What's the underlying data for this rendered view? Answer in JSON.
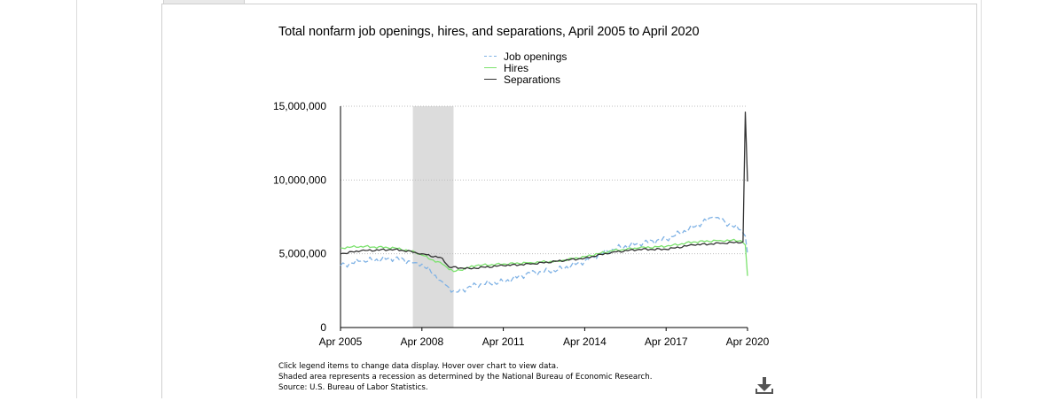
{
  "title": "Total nonfarm job openings, hires, and separations, April 2005 to April 2020",
  "legend": [
    {
      "label": "Job openings",
      "color": "#7fb2e5",
      "style": "dashed"
    },
    {
      "label": "Hires",
      "color": "#7be26d",
      "style": "solid"
    },
    {
      "label": "Separations",
      "color": "#333333",
      "style": "solid"
    }
  ],
  "notes": {
    "line1": "Click legend items to change data display. Hover over chart to view data.",
    "line2": "Shaded area represents a recession as determined by the National Bureau of Economic Research.",
    "line3": "Source: U.S. Bureau of Labor Statistics."
  },
  "icons": {
    "download": "download-icon"
  },
  "chart_data": {
    "type": "line",
    "title": "Total nonfarm job openings, hires, and separations, April 2005 to April 2020",
    "xlabel": "",
    "ylabel": "",
    "x_ticks": [
      "Apr 2005",
      "Apr 2008",
      "Apr 2011",
      "Apr 2014",
      "Apr 2017",
      "Apr 2020"
    ],
    "y_ticks": [
      0,
      5000000,
      10000000,
      15000000
    ],
    "y_tick_labels": [
      "0",
      "5,000,000",
      "10,000,000",
      "15,000,000"
    ],
    "ylim": [
      0,
      15000000
    ],
    "x_start": "Apr 2005",
    "x_end": "Apr 2020",
    "grid": true,
    "legend_position": "top-center",
    "recession": {
      "start": "Dec 2007",
      "end": "Jun 2009"
    },
    "series": [
      {
        "name": "Job openings",
        "color": "#7fb2e5",
        "style": "dashed",
        "keypoints": [
          [
            "Apr 2005",
            4200000
          ],
          [
            "Jan 2006",
            4500000
          ],
          [
            "Apr 2007",
            4700000
          ],
          [
            "Jan 2008",
            4400000
          ],
          [
            "Apr 2008",
            4300000
          ],
          [
            "Jan 2009",
            3100000
          ],
          [
            "Apr 2009",
            2700000
          ],
          [
            "Jul 2009",
            2400000
          ],
          [
            "Apr 2010",
            2900000
          ],
          [
            "Apr 2011",
            3100000
          ],
          [
            "Apr 2012",
            3700000
          ],
          [
            "Apr 2013",
            3900000
          ],
          [
            "Apr 2014",
            4500000
          ],
          [
            "Apr 2015",
            5300000
          ],
          [
            "Apr 2016",
            5700000
          ],
          [
            "Apr 2017",
            6000000
          ],
          [
            "Apr 2018",
            6800000
          ],
          [
            "Jan 2019",
            7500000
          ],
          [
            "Apr 2019",
            7300000
          ],
          [
            "Jan 2020",
            6600000
          ],
          [
            "Mar 2020",
            6200000
          ],
          [
            "Apr 2020",
            5000000
          ]
        ]
      },
      {
        "name": "Hires",
        "color": "#7be26d",
        "style": "solid",
        "keypoints": [
          [
            "Apr 2005",
            5400000
          ],
          [
            "Jan 2006",
            5500000
          ],
          [
            "Apr 2007",
            5400000
          ],
          [
            "Jan 2008",
            5100000
          ],
          [
            "Apr 2008",
            4900000
          ],
          [
            "Jan 2009",
            4300000
          ],
          [
            "Jun 2009",
            3800000
          ],
          [
            "Apr 2010",
            4200000
          ],
          [
            "Apr 2011",
            4300000
          ],
          [
            "Apr 2012",
            4400000
          ],
          [
            "Apr 2013",
            4500000
          ],
          [
            "Apr 2014",
            4800000
          ],
          [
            "Apr 2015",
            5200000
          ],
          [
            "Apr 2016",
            5400000
          ],
          [
            "Apr 2017",
            5500000
          ],
          [
            "Apr 2018",
            5800000
          ],
          [
            "Apr 2019",
            5900000
          ],
          [
            "Jan 2020",
            5900000
          ],
          [
            "Mar 2020",
            5600000
          ],
          [
            "Apr 2020",
            3500000
          ]
        ]
      },
      {
        "name": "Separations",
        "color": "#333333",
        "style": "solid",
        "keypoints": [
          [
            "Apr 2005",
            5000000
          ],
          [
            "Jan 2006",
            5200000
          ],
          [
            "Apr 2007",
            5300000
          ],
          [
            "Jan 2008",
            5100000
          ],
          [
            "Apr 2008",
            5000000
          ],
          [
            "Jan 2009",
            4700000
          ],
          [
            "Apr 2009",
            4100000
          ],
          [
            "Jan 2010",
            4000000
          ],
          [
            "Apr 2011",
            4200000
          ],
          [
            "Apr 2012",
            4300000
          ],
          [
            "Apr 2013",
            4500000
          ],
          [
            "Apr 2014",
            4700000
          ],
          [
            "Apr 2015",
            5100000
          ],
          [
            "Apr 2016",
            5300000
          ],
          [
            "Apr 2017",
            5300000
          ],
          [
            "Apr 2018",
            5600000
          ],
          [
            "Apr 2019",
            5700000
          ],
          [
            "Feb 2020",
            5800000
          ],
          [
            "Mar 2020",
            14600000
          ],
          [
            "Apr 2020",
            9900000
          ]
        ]
      }
    ]
  }
}
